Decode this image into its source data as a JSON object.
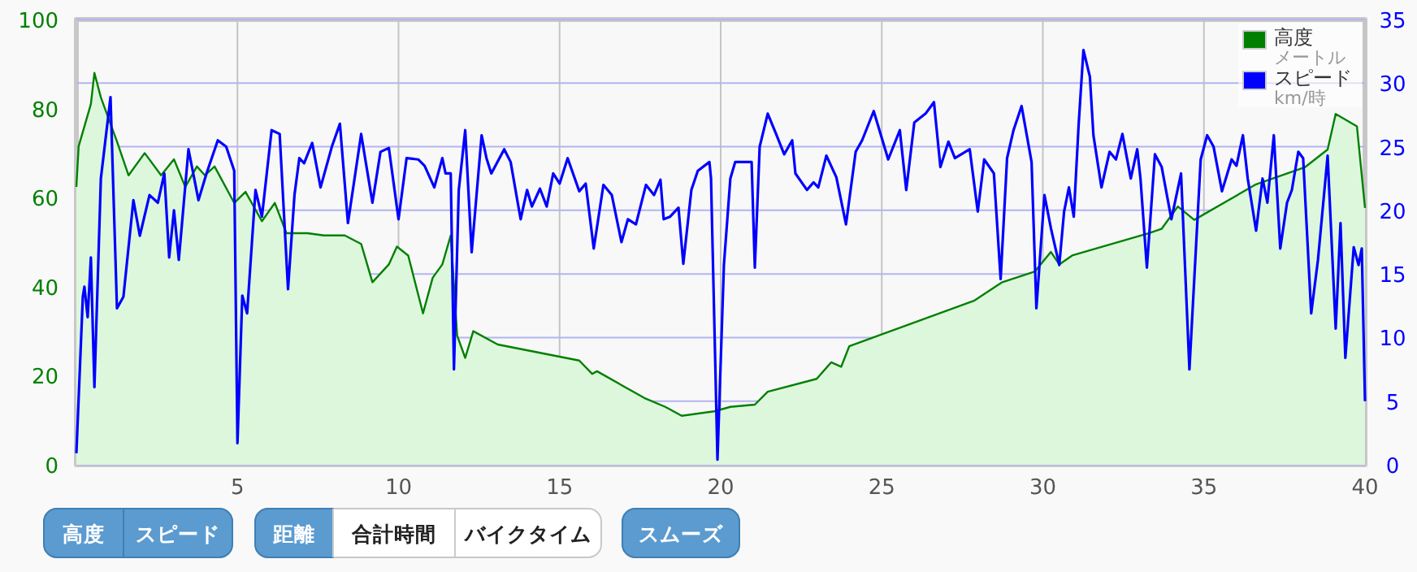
{
  "chart_data": {
    "type": "line",
    "xlim": [
      0,
      40
    ],
    "xticks": [
      5,
      10,
      15,
      20,
      25,
      30,
      35,
      40
    ],
    "ylim": [
      0,
      100
    ],
    "yticks": [
      0,
      20,
      40,
      60,
      80,
      100
    ],
    "y2lim": [
      0,
      35
    ],
    "y2ticks": [
      0,
      5,
      10,
      15,
      20,
      25,
      30,
      35
    ],
    "grid": true,
    "legend": "top right",
    "marker": "none",
    "series": [
      {
        "name": "高度メートル",
        "type": "area",
        "color": "#008000",
        "x": [
          0,
          0.07,
          0.45,
          0.56,
          0.76,
          1.26,
          1.62,
          2.12,
          2.63,
          3.03,
          3.38,
          3.74,
          3.99,
          4.29,
          4.9,
          5.25,
          5.76,
          6.16,
          6.52,
          7.17,
          7.68,
          8.33,
          8.84,
          9.19,
          9.7,
          9.95,
          10.3,
          10.76,
          11.06,
          11.36,
          11.62,
          11.82,
          12.07,
          12.32,
          13.08,
          15.61,
          16.01,
          16.16,
          17.63,
          18.28,
          18.79,
          19.8,
          20.3,
          21.06,
          21.46,
          22.98,
          23.43,
          23.74,
          23.99,
          27.88,
          28.74,
          29.75,
          30.25,
          30.51,
          30.91,
          33.28,
          33.69,
          34.19,
          34.7,
          36.62,
          38.13,
          38.84,
          39.09,
          39.75,
          40
        ],
        "values": [
          62.4,
          71.5,
          81,
          88,
          82.5,
          72.6,
          65,
          70,
          65,
          68.6,
          62.4,
          67,
          65,
          67,
          58.8,
          61.3,
          54.7,
          58.8,
          52,
          52,
          51.5,
          51.5,
          49.6,
          41,
          45,
          49,
          47,
          34,
          42,
          45,
          51.5,
          29,
          24,
          30,
          27,
          23.4,
          20.4,
          21,
          15,
          13,
          11,
          12,
          13,
          13.5,
          16.4,
          19.3,
          23,
          22,
          26.6,
          36.9,
          41,
          43.4,
          47.8,
          45,
          47,
          52,
          53,
          58,
          55,
          63,
          66.8,
          70.8,
          78.8,
          76,
          57.7
        ]
      },
      {
        "name": "スピードkm/時",
        "axis": "y2",
        "color": "#0000ff",
        "x": [
          0,
          0.2,
          0.25,
          0.35,
          0.45,
          0.56,
          0.76,
          1.06,
          1.26,
          1.46,
          1.77,
          1.97,
          2.27,
          2.53,
          2.73,
          2.88,
          3.03,
          3.18,
          3.48,
          3.79,
          4.04,
          4.39,
          4.65,
          4.9,
          5,
          5.15,
          5.3,
          5.56,
          5.76,
          6.06,
          6.31,
          6.57,
          6.77,
          6.92,
          7.07,
          7.32,
          7.58,
          7.93,
          8.18,
          8.43,
          8.84,
          9.19,
          9.44,
          9.7,
          10,
          10.25,
          10.61,
          10.81,
          11.11,
          11.36,
          11.46,
          11.62,
          11.72,
          11.87,
          12.07,
          12.27,
          12.58,
          12.73,
          12.88,
          13.28,
          13.48,
          13.79,
          13.99,
          14.14,
          14.39,
          14.6,
          14.8,
          15,
          15.25,
          15.61,
          15.81,
          16.06,
          16.36,
          16.62,
          16.92,
          17.12,
          17.37,
          17.68,
          17.93,
          18.13,
          18.23,
          18.43,
          18.69,
          18.84,
          19.09,
          19.29,
          19.65,
          19.7,
          19.9,
          20.1,
          20.3,
          20.45,
          20.96,
          21.06,
          21.21,
          21.46,
          21.72,
          21.97,
          22.22,
          22.32,
          22.68,
          22.88,
          23.03,
          23.28,
          23.59,
          23.89,
          24.19,
          24.39,
          24.75,
          25.2,
          25.56,
          25.76,
          26.01,
          26.36,
          26.62,
          26.82,
          27.07,
          27.27,
          27.73,
          27.98,
          28.18,
          28.48,
          28.69,
          28.89,
          29.09,
          29.34,
          29.65,
          29.8,
          30.05,
          30.25,
          30.51,
          30.66,
          30.81,
          30.96,
          31.11,
          31.26,
          31.46,
          31.57,
          31.82,
          32.07,
          32.27,
          32.47,
          32.73,
          32.93,
          33.03,
          33.23,
          33.48,
          33.69,
          33.99,
          34.29,
          34.55,
          34.9,
          35.1,
          35.3,
          35.56,
          35.86,
          36.01,
          36.21,
          36.36,
          36.62,
          36.82,
          36.97,
          37.17,
          37.37,
          37.58,
          37.73,
          37.93,
          38.08,
          38.33,
          38.54,
          38.84,
          39.09,
          39.24,
          39.39,
          39.65,
          39.8,
          39.9,
          40
        ],
        "values": [
          0.9,
          13.2,
          14,
          11.6,
          16.3,
          6.1,
          22.5,
          28.9,
          12.3,
          13.2,
          20.8,
          18,
          21.2,
          20.6,
          22.9,
          16.3,
          20,
          16.1,
          24.8,
          20.8,
          22.9,
          25.5,
          25,
          23.1,
          1.7,
          13.3,
          11.9,
          21.6,
          19.5,
          26.3,
          26,
          13.8,
          21.2,
          24.1,
          23.7,
          25.3,
          21.8,
          25,
          26.8,
          19,
          26,
          20.6,
          24.6,
          24.9,
          19.3,
          24.1,
          24,
          23.5,
          21.8,
          24.1,
          22.9,
          22.9,
          7.5,
          21.6,
          26.3,
          16.7,
          25.9,
          24.1,
          22.9,
          24.8,
          23.8,
          19.3,
          21.6,
          20.3,
          21.7,
          20.3,
          22.9,
          22.1,
          24.1,
          21.5,
          22.1,
          17,
          22,
          21.2,
          17.5,
          19.3,
          18.9,
          22,
          21.2,
          22.4,
          19.3,
          19.5,
          20.2,
          15.8,
          21.6,
          23.1,
          23.8,
          22.5,
          0.4,
          15.7,
          22.5,
          23.8,
          23.8,
          15.5,
          25,
          27.6,
          26,
          24.4,
          25.5,
          22.9,
          21.6,
          22.2,
          21.8,
          24.3,
          22.6,
          18.9,
          24.6,
          25.5,
          27.8,
          24,
          26.3,
          21.6,
          26.9,
          27.6,
          28.5,
          23.4,
          25.4,
          24.1,
          24.8,
          19.9,
          24,
          22.9,
          14.6,
          24.1,
          26.3,
          28.2,
          23.8,
          12.3,
          21.2,
          18.6,
          15.7,
          19.9,
          21.8,
          19.5,
          26.7,
          32.6,
          30.5,
          25.9,
          21.8,
          24.6,
          24,
          26,
          22.5,
          24.8,
          22.5,
          15.5,
          24.4,
          23.4,
          19.3,
          22.9,
          7.5,
          24,
          25.9,
          25,
          21.5,
          24,
          23.5,
          25.9,
          22.5,
          18.4,
          22.5,
          20.6,
          25.9,
          17,
          20.6,
          21.6,
          24.6,
          24.1,
          11.9,
          16.1,
          24.3,
          10.7,
          19,
          8.4,
          17.1,
          15.7,
          17,
          5
        ]
      }
    ],
    "annotations": [
      "高度",
      "スピード",
      "距離",
      "合計時間",
      "バイクタイム",
      "スムーズ"
    ]
  }
}
